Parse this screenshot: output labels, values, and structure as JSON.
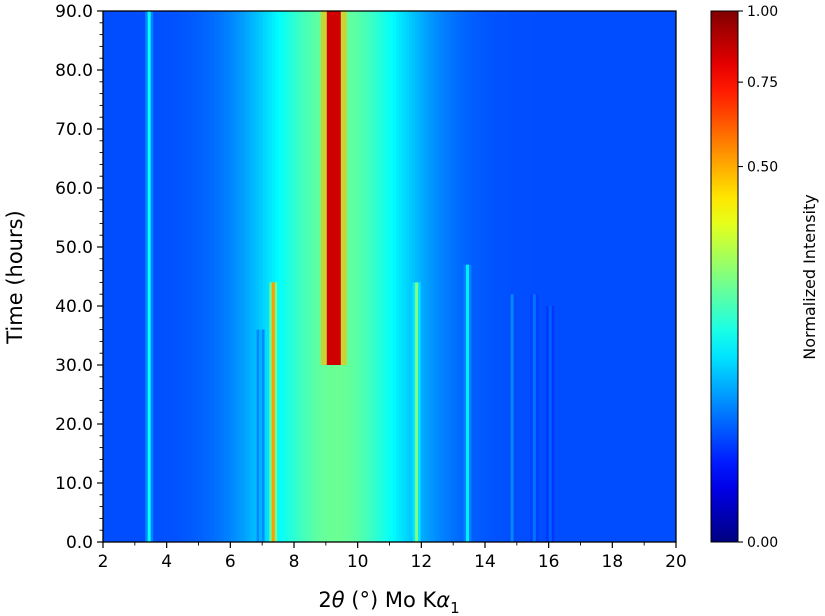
{
  "chart_data": {
    "type": "heatmap",
    "xlabel": "2θ (°) Mo Kα₁",
    "xlabel_parts": {
      "two": "2",
      "theta": "θ",
      "rest": " (°) Mo K",
      "alpha": "α",
      "sub": "1"
    },
    "ylabel": "Time (hours)",
    "xlim": [
      2,
      20
    ],
    "ylim": [
      0,
      90
    ],
    "x_ticks": [
      2,
      4,
      6,
      8,
      10,
      12,
      14,
      16,
      18,
      20
    ],
    "x_tick_labels": [
      "2",
      "4",
      "6",
      "8",
      "10",
      "12",
      "14",
      "16",
      "18",
      "20"
    ],
    "y_ticks": [
      0,
      10,
      20,
      30,
      40,
      50,
      60,
      70,
      80,
      90
    ],
    "y_tick_labels": [
      "0.0",
      "10.0",
      "20.0",
      "30.0",
      "40.0",
      "50.0",
      "60.0",
      "70.0",
      "80.0",
      "90.0"
    ],
    "colormap": "jet",
    "colorbar": {
      "label": "Normalized Intensity",
      "range": [
        0,
        1
      ],
      "ticks": [
        0.0,
        0.5,
        0.75,
        1.0
      ],
      "tick_labels": [
        "0.00",
        "0.50",
        "0.75",
        "1.00"
      ],
      "scale": "sqrt"
    },
    "background": {
      "base": 0.2,
      "broad_hump": {
        "center": 9.3,
        "width": 2.6,
        "amplitude": 0.28
      }
    },
    "peaks": [
      {
        "two_theta": 3.45,
        "t_start": 0,
        "t_end": 90,
        "intensity": 0.38
      },
      {
        "two_theta": 6.95,
        "t_start": 0,
        "t_end": 36,
        "intensity": 0.3
      },
      {
        "two_theta": 7.35,
        "t_start": 0,
        "t_end": 44,
        "intensity": 0.72
      },
      {
        "two_theta": 9.25,
        "t_start": 30,
        "t_end": 90,
        "intensity": 0.92
      },
      {
        "two_theta": 11.85,
        "t_start": 0,
        "t_end": 44,
        "intensity": 0.5
      },
      {
        "two_theta": 13.45,
        "t_start": 0,
        "t_end": 47,
        "intensity": 0.36
      },
      {
        "two_theta": 14.85,
        "t_start": 0,
        "t_end": 42,
        "intensity": 0.26
      },
      {
        "two_theta": 15.55,
        "t_start": 0,
        "t_end": 42,
        "intensity": 0.24
      },
      {
        "two_theta": 16.05,
        "t_start": 0,
        "t_end": 40,
        "intensity": 0.22
      }
    ]
  }
}
